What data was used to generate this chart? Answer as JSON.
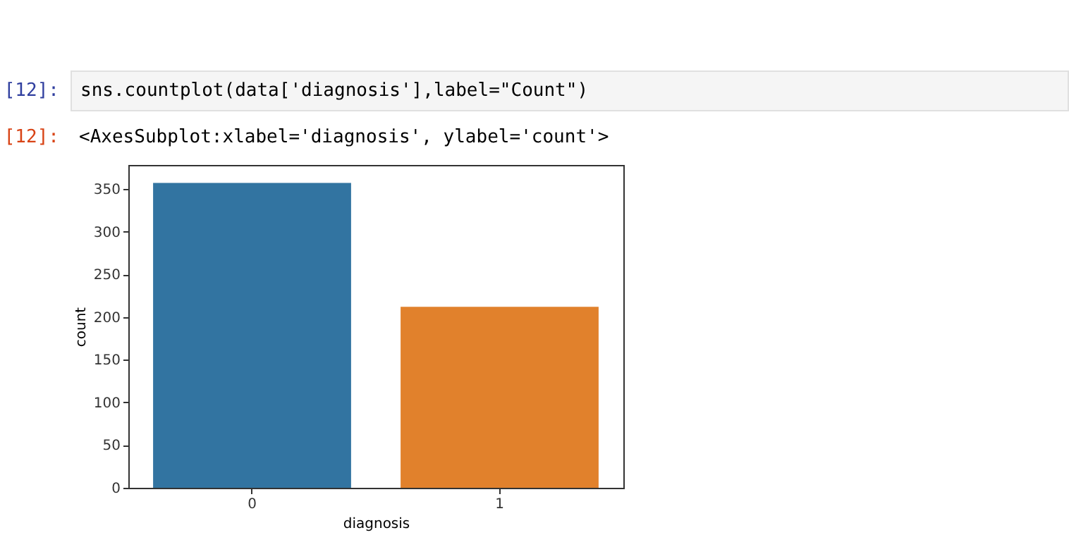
{
  "chart_data": {
    "type": "bar",
    "xlabel": "diagnosis",
    "ylabel": "count",
    "categories": [
      "0",
      "1"
    ],
    "values": [
      357,
      212
    ],
    "colors": [
      "#3274a1",
      "#e1812c"
    ],
    "ylim": [
      0,
      378
    ],
    "yticks": [
      0,
      50,
      100,
      150,
      200,
      250,
      300,
      350
    ],
    "grid": false,
    "annotations": [
      "[12]:",
      "sns.countplot(data['diagnosis'],label=\"Count\")",
      "[12]:",
      "<AxesSubplot:xlabel='diagnosis', ylabel='count'>"
    ]
  }
}
